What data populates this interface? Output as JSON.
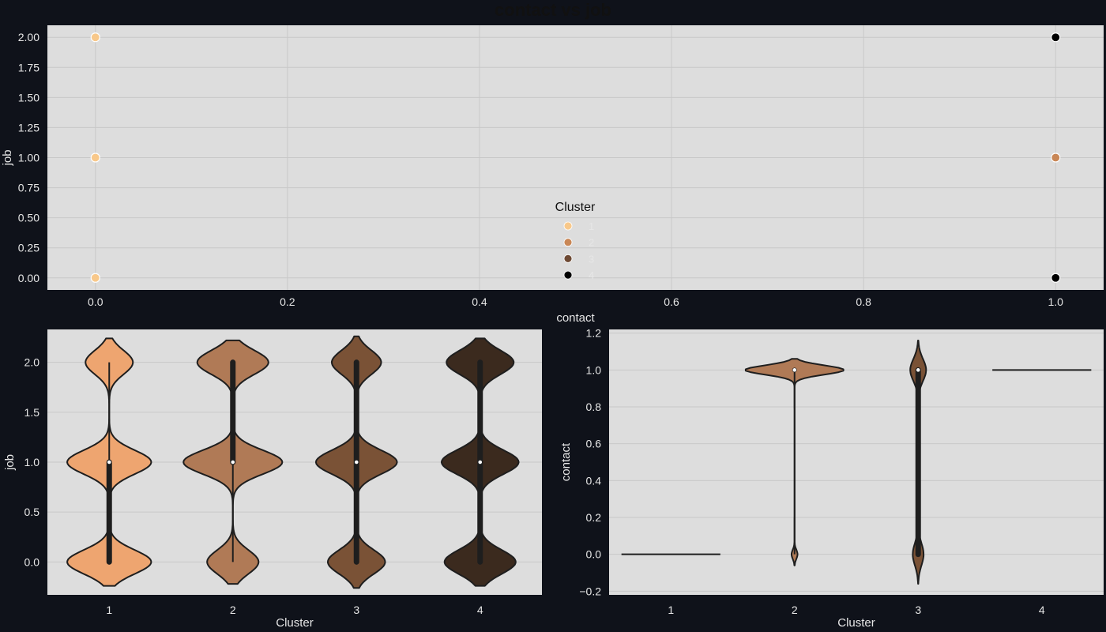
{
  "figure": {
    "background": "#0f121a",
    "plot_background": "#dddddd",
    "grid_color": "#c8c8c8"
  },
  "chart_data": [
    {
      "id": "scatter",
      "type": "scatter",
      "title": "contact vs job",
      "xlabel": "contact",
      "ylabel": "job",
      "xlim": [
        -0.05,
        1.05
      ],
      "ylim": [
        -0.1,
        2.1
      ],
      "xticks": [
        0.0,
        0.2,
        0.4,
        0.6,
        0.8,
        1.0
      ],
      "xtick_labels": [
        "0.0",
        "0.2",
        "0.4",
        "0.6",
        "0.8",
        "1.0"
      ],
      "yticks": [
        0.0,
        0.25,
        0.5,
        0.75,
        1.0,
        1.25,
        1.5,
        1.75,
        2.0
      ],
      "ytick_labels": [
        "0.00",
        "0.25",
        "0.50",
        "0.75",
        "1.00",
        "1.25",
        "1.50",
        "1.75",
        "2.00"
      ],
      "grid": true,
      "legend": {
        "title": "Cluster",
        "placement": "center-bottom",
        "entries": [
          {
            "label": "1",
            "color": "#f8c88a"
          },
          {
            "label": "2",
            "color": "#c98756"
          },
          {
            "label": "3",
            "color": "#6e4a34"
          },
          {
            "label": "4",
            "color": "#000000"
          }
        ]
      },
      "points": [
        {
          "x": 0,
          "y": 2,
          "cluster": "1"
        },
        {
          "x": 0,
          "y": 1,
          "cluster": "1"
        },
        {
          "x": 0,
          "y": 0,
          "cluster": "1"
        },
        {
          "x": 1,
          "y": 2,
          "cluster": "4"
        },
        {
          "x": 1,
          "y": 1,
          "cluster": "2"
        },
        {
          "x": 1,
          "y": 0,
          "cluster": "4"
        }
      ]
    },
    {
      "id": "violin-job",
      "type": "violin",
      "xlabel": "Cluster",
      "ylabel": "job",
      "ylim": [
        -0.33,
        2.33
      ],
      "yticks": [
        0.0,
        0.5,
        1.0,
        1.5,
        2.0
      ],
      "ytick_labels": [
        "0.0",
        "0.5",
        "1.0",
        "1.5",
        "2.0"
      ],
      "categories": [
        "1",
        "2",
        "3",
        "4"
      ],
      "grid": true,
      "violins": [
        {
          "category": "1",
          "color": "#eea570",
          "median": 1.0,
          "q1": 0.0,
          "q3": 1.0,
          "wmin": 0.0,
          "wmax": 2.0,
          "modes": [
            {
              "v": 0.0,
              "w": 0.85
            },
            {
              "v": 1.0,
              "w": 0.85
            },
            {
              "v": 2.0,
              "w": 0.48
            }
          ],
          "sigma": 0.12,
          "lo": -0.24,
          "hi": 2.24
        },
        {
          "category": "2",
          "color": "#b07a56",
          "median": 1.0,
          "q1": 1.0,
          "q3": 2.0,
          "wmin": 0.0,
          "wmax": 2.0,
          "modes": [
            {
              "v": 0.0,
              "w": 0.52
            },
            {
              "v": 1.0,
              "w": 1.0
            },
            {
              "v": 2.0,
              "w": 0.72
            }
          ],
          "sigma": 0.12,
          "lo": -0.22,
          "hi": 2.22
        },
        {
          "category": "3",
          "color": "#7a5236",
          "median": 1.0,
          "q1": 0.0,
          "q3": 2.0,
          "wmin": 0.0,
          "wmax": 2.0,
          "modes": [
            {
              "v": 0.0,
              "w": 0.58
            },
            {
              "v": 1.0,
              "w": 0.82
            },
            {
              "v": 2.0,
              "w": 0.5
            }
          ],
          "sigma": 0.12,
          "lo": -0.26,
          "hi": 2.26
        },
        {
          "category": "4",
          "color": "#3b2a1e",
          "median": 1.0,
          "q1": 0.0,
          "q3": 2.0,
          "wmin": 0.0,
          "wmax": 2.0,
          "modes": [
            {
              "v": 0.0,
              "w": 0.72
            },
            {
              "v": 1.0,
              "w": 0.78
            },
            {
              "v": 2.0,
              "w": 0.68
            }
          ],
          "sigma": 0.12,
          "lo": -0.24,
          "hi": 2.24
        }
      ]
    },
    {
      "id": "violin-contact",
      "type": "violin",
      "xlabel": "Cluster",
      "ylabel": "contact",
      "ylim": [
        -0.22,
        1.22
      ],
      "yticks": [
        -0.2,
        0.0,
        0.2,
        0.4,
        0.6,
        0.8,
        1.0,
        1.2
      ],
      "ytick_labels": [
        "−0.2",
        "0.0",
        "0.2",
        "0.4",
        "0.6",
        "0.8",
        "1.0",
        "1.2"
      ],
      "categories": [
        "1",
        "2",
        "3",
        "4"
      ],
      "grid": true,
      "violins": [
        {
          "category": "1",
          "color": "#eea570",
          "constant": 0.0
        },
        {
          "category": "2",
          "color": "#b07a56",
          "median": 1.0,
          "q1": 1.0,
          "q3": 1.0,
          "wmin": 0.0,
          "wmax": 1.0,
          "modes": [
            {
              "v": 0.0,
              "w": 0.06
            },
            {
              "v": 1.0,
              "w": 1.0
            }
          ],
          "sigma": 0.025,
          "lo": -0.06,
          "hi": 1.06,
          "centerline": true
        },
        {
          "category": "3",
          "color": "#7a5236",
          "median": 1.0,
          "q1": 0.0,
          "q3": 1.0,
          "wmin": 0.0,
          "wmax": 1.0,
          "modes": [
            {
              "v": 0.0,
              "w": 0.11
            },
            {
              "v": 1.0,
              "w": 0.16
            }
          ],
          "sigma": 0.06,
          "lo": -0.16,
          "hi": 1.16
        },
        {
          "category": "4",
          "color": "#3b2a1e",
          "constant": 1.0
        }
      ]
    }
  ]
}
